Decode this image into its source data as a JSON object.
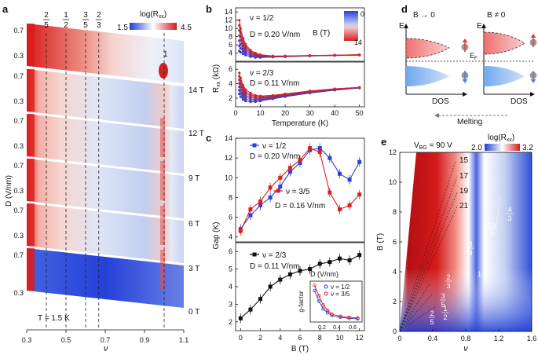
{
  "panels": {
    "a": {
      "label": "a",
      "colorbar": {
        "title": "log(R",
        "title_sub": "xx",
        "title_end": ")",
        "min": "1.5",
        "max": "4.5"
      },
      "fraction_labels": [
        {
          "num": "2",
          "den": "5",
          "nu": 0.4
        },
        {
          "num": "1",
          "den": "2",
          "nu": 0.5
        },
        {
          "num": "3",
          "den": "5",
          "nu": 0.6
        },
        {
          "num": "2",
          "den": "3",
          "nu": 0.667
        }
      ],
      "peak_label": "1",
      "fields": [
        "14 T",
        "12 T",
        "9 T",
        "6 T",
        "3 T",
        "0 T"
      ],
      "d_ticks": [
        [
          "0.7",
          "0.3"
        ],
        [
          "0.7",
          "0.3"
        ],
        [
          "0.7",
          "0.3"
        ],
        [
          "0.7",
          "0.3"
        ],
        [
          "0.7",
          "0.3"
        ],
        [
          "0.7",
          "0.3"
        ]
      ],
      "ylabel": "D (V/nm)",
      "xlabel": "ν",
      "xticks": [
        "0.3",
        "0.5",
        "0.7",
        "0.9",
        "1.1"
      ],
      "temperature": "T = 1.5 K"
    },
    "b": {
      "label": "b",
      "ylabel": "R",
      "ylabel_sub": "xx",
      "ylabel_unit": " (kΩ)",
      "xlabel": "Temperature (K)",
      "legend_title": "B (T)",
      "legend_min": "0",
      "legend_max": "14",
      "top": {
        "nu": "ν = 1/2",
        "D": "D = 0.20 V/nm",
        "yticks": [
          "4",
          "6",
          "8",
          "10",
          "12",
          "14"
        ]
      },
      "bottom": {
        "nu": "ν = 2/3",
        "D": "D = 0.11 V/nm",
        "yticks": [
          "2",
          "4",
          "6"
        ]
      },
      "xticks": [
        "0",
        "10",
        "20",
        "30",
        "40",
        "50"
      ]
    },
    "c": {
      "label": "c",
      "ylabel": "Gap (K)",
      "xlabel": "B (T)",
      "xticks": [
        "0",
        "2",
        "4",
        "6",
        "8",
        "10",
        "12"
      ],
      "top_yticks": [
        "4",
        "6",
        "8",
        "10",
        "12",
        "14"
      ],
      "bottom_yticks": [
        "2",
        "3",
        "4",
        "5",
        "6"
      ],
      "legend_half": "ν = 1/2",
      "legend_half_D": "D = 0.20 V/nm",
      "legend_35": "ν = 3/5",
      "legend_35_D": "D = 0.16 V/nm",
      "legend_23": "ν = 2/3",
      "legend_23_D": "D = 0.11 V/nm",
      "inset": {
        "xlabel": "D (V/nm)",
        "ylabel": "g-factor",
        "legend": [
          "ν = 1/2",
          "ν = 3/5"
        ],
        "xticks": [
          "0.2",
          "0.4",
          "0.6"
        ]
      }
    },
    "d": {
      "label": "d",
      "left_title": "B → 0",
      "right_title": "B ≠ 0",
      "energy": "E",
      "fermi": "E",
      "fermi_sub": "F",
      "dos": "DOS",
      "melting": "Melting"
    },
    "e": {
      "label": "e",
      "vbg": "V",
      "vbg_sub": "BG",
      "vbg_val": " = 90 V",
      "colorbar": {
        "title": "log(R",
        "title_sub": "xx",
        "title_end": ")",
        "min": "2.0",
        "max": "3.2"
      },
      "ylabel": "B (T)",
      "xlabel": "ν",
      "yticks": [
        "0",
        "2",
        "4",
        "6",
        "8",
        "10",
        "12"
      ],
      "xticks": [
        "0",
        "0.4",
        "0.8",
        "1.2",
        "1.6"
      ],
      "lines": [
        "15",
        "17",
        "19",
        "21"
      ],
      "fractions": [
        {
          "num": "8",
          "den": "9"
        },
        {
          "num": "10",
          "den": "9"
        },
        {
          "num": "4",
          "den": "3"
        },
        {
          "num": "2",
          "den": "3"
        },
        {
          "num": "3",
          "den": "5"
        },
        {
          "num": "2",
          "den": "5"
        },
        {
          "num": "1",
          "den": "2"
        }
      ],
      "one": "1"
    }
  },
  "chart_data": [
    {
      "type": "line",
      "panel": "c-top",
      "xlabel": "B (T)",
      "ylabel": "Gap (K)",
      "ylim": [
        3.5,
        14
      ],
      "xlim": [
        -0.5,
        12.5
      ],
      "series": [
        {
          "name": "ν = 1/2",
          "color": "#2a40d8",
          "x": [
            0,
            1,
            2,
            3,
            4,
            5,
            6,
            7,
            8,
            9,
            10,
            11,
            12
          ],
          "y": [
            4.8,
            6.2,
            7.2,
            8.0,
            9.1,
            10.6,
            11.5,
            12.8,
            13.0,
            12.0,
            10.4,
            9.8,
            11.6
          ]
        },
        {
          "name": "ν = 3/5",
          "color": "#d82020",
          "x": [
            0,
            1,
            2,
            3,
            4,
            5,
            6,
            7,
            8,
            9,
            10,
            11,
            12
          ],
          "y": [
            4.6,
            6.8,
            7.6,
            9.0,
            10.0,
            11.0,
            11.8,
            13.0,
            12.6,
            8.5,
            6.8,
            7.2,
            8.3
          ]
        }
      ]
    },
    {
      "type": "line",
      "panel": "c-bottom",
      "xlabel": "B (T)",
      "ylabel": "Gap (K)",
      "ylim": [
        1.5,
        6.5
      ],
      "xlim": [
        -0.5,
        12.5
      ],
      "series": [
        {
          "name": "ν = 2/3",
          "color": "#111111",
          "x": [
            0,
            1,
            2,
            3,
            4,
            5,
            6,
            7,
            8,
            9,
            10,
            11,
            12
          ],
          "y": [
            2.2,
            2.7,
            3.3,
            4.0,
            4.4,
            4.7,
            4.9,
            5.0,
            5.3,
            5.4,
            5.6,
            5.5,
            5.8
          ]
        }
      ]
    },
    {
      "type": "line",
      "panel": "c-inset",
      "xlabel": "D (V/nm)",
      "ylabel": "g-factor",
      "series": [
        {
          "name": "ν = 1/2",
          "color": "#2a40d8",
          "x": [
            0.1,
            0.15,
            0.2,
            0.25,
            0.3,
            0.4,
            0.5,
            0.6
          ],
          "y": [
            1.4,
            1.0,
            0.7,
            0.55,
            0.45,
            0.38,
            0.34,
            0.32
          ]
        },
        {
          "name": "ν = 3/5",
          "color": "#d82020",
          "x": [
            0.1,
            0.15,
            0.2,
            0.25,
            0.3,
            0.4,
            0.5,
            0.6
          ],
          "y": [
            1.6,
            1.2,
            0.85,
            0.65,
            0.5,
            0.42,
            0.38,
            0.35
          ]
        }
      ]
    },
    {
      "type": "line",
      "panel": "b-top",
      "xlabel": "Temperature (K)",
      "ylabel": "Rxx (kΩ)",
      "ylim": [
        2,
        15
      ],
      "xlim": [
        0,
        52
      ],
      "series": [
        {
          "name": "14 T",
          "color": "#d82020",
          "x": [
            1.5,
            2,
            3,
            4,
            6,
            8,
            10,
            15,
            20,
            30,
            40,
            50
          ],
          "y": [
            12.0,
            10.0,
            7.6,
            6.2,
            4.7,
            4.0,
            3.6,
            3.3,
            3.3,
            3.4,
            3.5,
            3.6
          ]
        },
        {
          "name": "0 T",
          "color": "#2a40d8",
          "x": [
            1.5,
            2,
            3,
            4,
            6,
            8,
            10,
            15,
            20,
            30,
            40,
            50
          ],
          "y": [
            4.5,
            4.2,
            3.8,
            3.5,
            3.1,
            2.9,
            2.9,
            3.0,
            3.1,
            3.3,
            3.4,
            3.5
          ]
        }
      ]
    },
    {
      "type": "line",
      "panel": "b-bottom",
      "xlabel": "Temperature (K)",
      "ylabel": "Rxx (kΩ)",
      "ylim": [
        0.8,
        7
      ],
      "xlim": [
        0,
        52
      ],
      "series": [
        {
          "name": "14 T",
          "color": "#d82020",
          "x": [
            1.5,
            2,
            3,
            4,
            6,
            8,
            10,
            15,
            20,
            30,
            40,
            50
          ],
          "y": [
            5.5,
            4.8,
            3.8,
            3.2,
            2.7,
            2.4,
            2.3,
            2.4,
            2.6,
            3.0,
            3.3,
            3.5
          ]
        },
        {
          "name": "0 T",
          "color": "#2a40d8",
          "x": [
            1.5,
            2,
            3,
            4,
            6,
            8,
            10,
            15,
            20,
            30,
            40,
            50
          ],
          "y": [
            2.6,
            2.2,
            1.8,
            1.6,
            1.5,
            1.5,
            1.6,
            1.9,
            2.2,
            2.7,
            3.1,
            3.4
          ]
        }
      ]
    }
  ]
}
